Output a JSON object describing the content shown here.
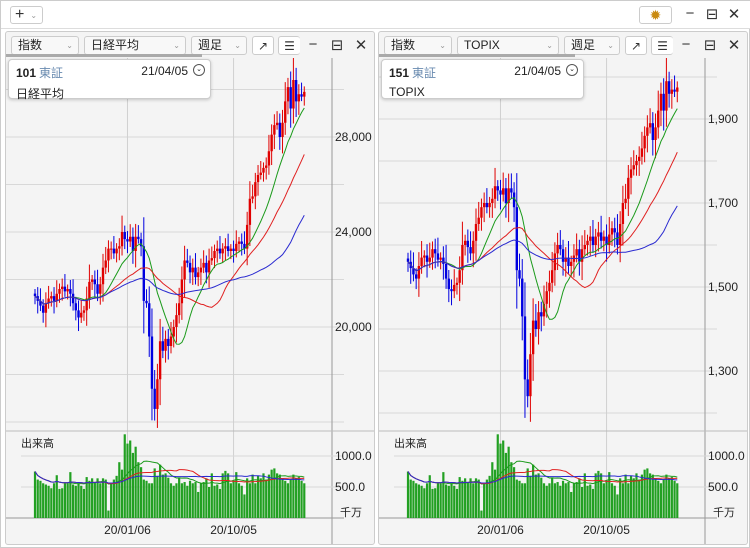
{
  "topbar": {
    "add_label": "+",
    "settings_icon": "gear-icon"
  },
  "panels": [
    {
      "type_select": "指数",
      "symbol_select": "日経平均",
      "period_select": "週足",
      "info": {
        "code": "101",
        "market": "東証",
        "date": "21/04/05",
        "name": "日経平均"
      },
      "volume_label": "出来高",
      "volume_unit": "千万",
      "x_ticks": [
        {
          "label": "20/01/06",
          "index": 34
        },
        {
          "label": "20/10/05",
          "index": 73
        }
      ],
      "price_labels": [
        "20,000",
        "24,000",
        "28,000"
      ]
    },
    {
      "type_select": "指数",
      "symbol_select": "TOPIX",
      "period_select": "週足",
      "info": {
        "code": "151",
        "market": "東証",
        "date": "21/04/05",
        "name": "TOPIX"
      },
      "volume_label": "出来高",
      "volume_unit": "千万",
      "x_ticks": [
        {
          "label": "20/01/06",
          "index": 34
        },
        {
          "label": "20/10/05",
          "index": 73
        }
      ],
      "price_labels": [
        "1,300",
        "1,500",
        "1,700",
        "1,900"
      ]
    }
  ],
  "chart_data": [
    {
      "type": "candlestick",
      "title": "日経平均 週足",
      "ma_colors": {
        "ma13": "#1a9a1a",
        "ma26": "#e02020",
        "ma52": "#2a2ad0"
      },
      "up_color": "#e00000",
      "down_color": "#0000e0",
      "price_ticks": [
        20000,
        24000,
        28000
      ],
      "volume_ticks": [
        "500.0",
        "1000.0"
      ],
      "close": [
        21300,
        21100,
        20900,
        20600,
        21000,
        21200,
        21300,
        21100,
        21400,
        21600,
        21700,
        21500,
        21600,
        21400,
        21000,
        20700,
        20400,
        20600,
        20700,
        21200,
        21900,
        22000,
        21800,
        21400,
        21800,
        22500,
        22800,
        23300,
        23300,
        23100,
        23300,
        23400,
        24000,
        23700,
        23600,
        23800,
        23200,
        23800,
        23700,
        23400,
        21100,
        21000,
        19600,
        17400,
        16550,
        17800,
        19400,
        19000,
        19500,
        19200,
        19600,
        20000,
        20500,
        21000,
        22000,
        22800,
        22700,
        22300,
        22500,
        22100,
        22300,
        22500,
        22700,
        22300,
        22800,
        22900,
        23200,
        23300,
        23100,
        23300,
        23400,
        23200,
        23300,
        23200,
        23500,
        23600,
        23500,
        23300,
        24300,
        25400,
        25500,
        26100,
        26400,
        26500,
        26700,
        26800,
        27400,
        28100,
        28500,
        28600,
        28000,
        28600,
        29500,
        30100,
        29200,
        30400,
        29500,
        29800,
        29700,
        29900
      ],
      "volume": [
        750,
        620,
        600,
        560,
        540,
        520,
        480,
        560,
        690,
        470,
        480,
        560,
        560,
        740,
        540,
        520,
        560,
        520,
        470,
        660,
        600,
        640,
        580,
        640,
        560,
        640,
        620,
        120,
        560,
        620,
        680,
        900,
        780,
        1350,
        1200,
        1250,
        1050,
        1150,
        900,
        820,
        620,
        600,
        560,
        560,
        800,
        680,
        860,
        700,
        720,
        650,
        560,
        520,
        560,
        640,
        560,
        580,
        520,
        600,
        560,
        580,
        420,
        560,
        580,
        640,
        500,
        720,
        520,
        540,
        470,
        720,
        760,
        720,
        560,
        600,
        740,
        560,
        520,
        380,
        640,
        560,
        700,
        560,
        680,
        640,
        720,
        620,
        700,
        780,
        800,
        720,
        700,
        640,
        600,
        560,
        620,
        700,
        640,
        660,
        600,
        560
      ]
    },
    {
      "type": "candlestick",
      "title": "TOPIX 週足",
      "ma_colors": {
        "ma13": "#1a9a1a",
        "ma26": "#e02020",
        "ma52": "#2a2ad0"
      },
      "up_color": "#e00000",
      "down_color": "#0000e0",
      "price_ticks": [
        1300,
        1500,
        1700,
        1900
      ],
      "volume_ticks": [
        "500.0",
        "1000.0"
      ],
      "close": [
        1560,
        1545,
        1530,
        1520,
        1550,
        1570,
        1575,
        1560,
        1570,
        1590,
        1580,
        1565,
        1570,
        1555,
        1520,
        1495,
        1490,
        1505,
        1510,
        1540,
        1600,
        1610,
        1595,
        1580,
        1610,
        1650,
        1665,
        1690,
        1700,
        1690,
        1700,
        1710,
        1740,
        1730,
        1720,
        1735,
        1700,
        1735,
        1725,
        1690,
        1540,
        1520,
        1430,
        1280,
        1240,
        1340,
        1420,
        1400,
        1440,
        1430,
        1460,
        1490,
        1510,
        1540,
        1580,
        1600,
        1590,
        1560,
        1570,
        1550,
        1560,
        1575,
        1590,
        1560,
        1590,
        1600,
        1610,
        1620,
        1600,
        1620,
        1630,
        1610,
        1620,
        1600,
        1625,
        1640,
        1630,
        1600,
        1650,
        1700,
        1710,
        1760,
        1780,
        1790,
        1800,
        1810,
        1830,
        1860,
        1880,
        1890,
        1850,
        1880,
        1920,
        1960,
        1920,
        1990,
        1960,
        1970,
        1965,
        1975
      ],
      "volume": [
        750,
        620,
        600,
        560,
        540,
        520,
        480,
        560,
        690,
        470,
        480,
        560,
        560,
        740,
        540,
        520,
        560,
        520,
        470,
        660,
        600,
        640,
        580,
        640,
        560,
        640,
        620,
        120,
        560,
        620,
        680,
        900,
        780,
        1350,
        1200,
        1250,
        1050,
        1150,
        900,
        820,
        620,
        600,
        560,
        560,
        800,
        680,
        860,
        700,
        720,
        650,
        560,
        520,
        560,
        640,
        560,
        580,
        520,
        600,
        560,
        580,
        420,
        560,
        580,
        640,
        500,
        720,
        520,
        540,
        470,
        720,
        760,
        720,
        560,
        600,
        740,
        560,
        520,
        380,
        640,
        560,
        700,
        560,
        680,
        640,
        720,
        620,
        700,
        780,
        800,
        720,
        700,
        640,
        600,
        560,
        620,
        700,
        640,
        660,
        600,
        560
      ]
    }
  ]
}
